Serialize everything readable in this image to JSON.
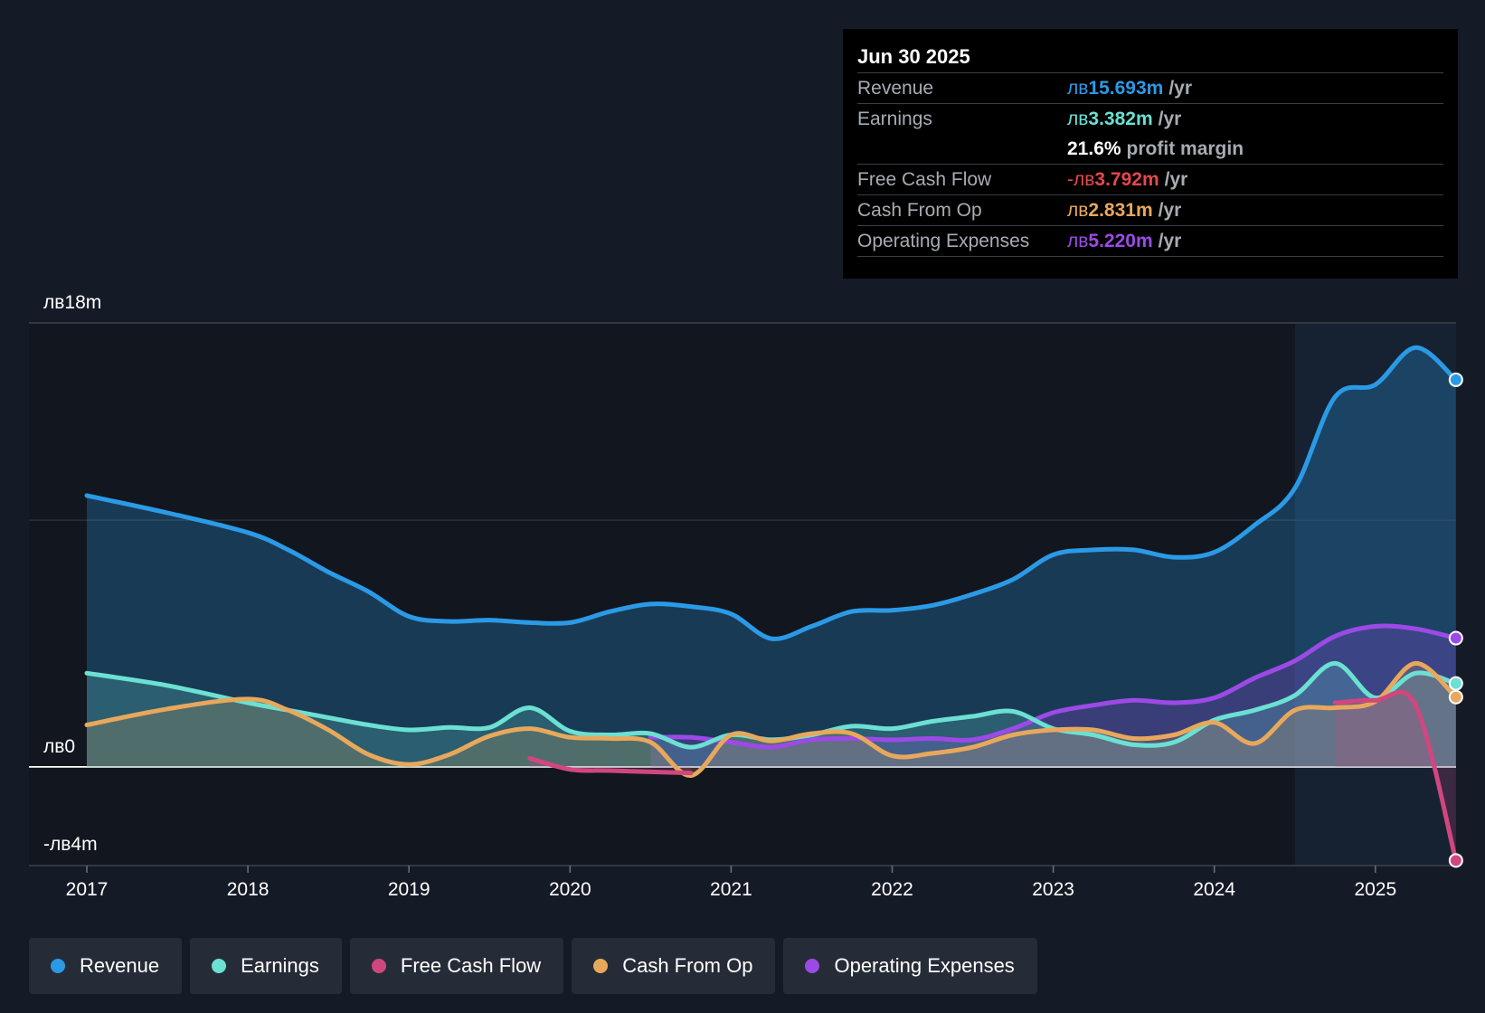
{
  "chart_data": {
    "type": "area",
    "y_axis": {
      "top_label": "лв18m",
      "zero_label": "лв0",
      "bottom_label": "-лв4m",
      "ylim": [
        -4,
        18
      ]
    },
    "x_ticks": [
      "2017",
      "2018",
      "2019",
      "2020",
      "2021",
      "2022",
      "2023",
      "2024",
      "2025"
    ],
    "xlim": [
      2016.64,
      2025.5
    ],
    "highlight_start": 2024.5,
    "series": [
      {
        "name": "Revenue",
        "key": "revenue",
        "color": "#2b9ae6",
        "points": [
          [
            2017.0,
            11.0
          ],
          [
            2017.5,
            10.3
          ],
          [
            2018.0,
            9.5
          ],
          [
            2018.25,
            8.8
          ],
          [
            2018.5,
            7.9
          ],
          [
            2018.75,
            7.1
          ],
          [
            2019.0,
            6.1
          ],
          [
            2019.25,
            5.9
          ],
          [
            2019.5,
            5.95
          ],
          [
            2019.75,
            5.85
          ],
          [
            2020.0,
            5.85
          ],
          [
            2020.25,
            6.3
          ],
          [
            2020.5,
            6.6
          ],
          [
            2020.75,
            6.5
          ],
          [
            2021.0,
            6.2
          ],
          [
            2021.25,
            5.2
          ],
          [
            2021.5,
            5.7
          ],
          [
            2021.75,
            6.3
          ],
          [
            2022.0,
            6.35
          ],
          [
            2022.25,
            6.55
          ],
          [
            2022.5,
            7.0
          ],
          [
            2022.75,
            7.6
          ],
          [
            2023.0,
            8.6
          ],
          [
            2023.25,
            8.8
          ],
          [
            2023.5,
            8.8
          ],
          [
            2023.75,
            8.5
          ],
          [
            2024.0,
            8.7
          ],
          [
            2024.25,
            9.8
          ],
          [
            2024.5,
            11.3
          ],
          [
            2024.75,
            15.0
          ],
          [
            2025.0,
            15.5
          ],
          [
            2025.25,
            17.0
          ],
          [
            2025.5,
            15.693
          ]
        ]
      },
      {
        "name": "Earnings",
        "key": "earnings",
        "color": "#6be0d3",
        "points": [
          [
            2017.0,
            3.8
          ],
          [
            2017.5,
            3.3
          ],
          [
            2018.0,
            2.6
          ],
          [
            2018.25,
            2.3
          ],
          [
            2018.5,
            2.0
          ],
          [
            2018.75,
            1.7
          ],
          [
            2019.0,
            1.5
          ],
          [
            2019.25,
            1.6
          ],
          [
            2019.5,
            1.6
          ],
          [
            2019.75,
            2.4
          ],
          [
            2020.0,
            1.45
          ],
          [
            2020.25,
            1.3
          ],
          [
            2020.5,
            1.35
          ],
          [
            2020.75,
            0.8
          ],
          [
            2021.0,
            1.3
          ],
          [
            2021.25,
            1.1
          ],
          [
            2021.5,
            1.3
          ],
          [
            2021.75,
            1.65
          ],
          [
            2022.0,
            1.55
          ],
          [
            2022.25,
            1.85
          ],
          [
            2022.5,
            2.05
          ],
          [
            2022.75,
            2.25
          ],
          [
            2023.0,
            1.55
          ],
          [
            2023.25,
            1.3
          ],
          [
            2023.5,
            0.9
          ],
          [
            2023.75,
            1.0
          ],
          [
            2024.0,
            1.9
          ],
          [
            2024.25,
            2.3
          ],
          [
            2024.5,
            2.9
          ],
          [
            2024.75,
            4.2
          ],
          [
            2025.0,
            2.8
          ],
          [
            2025.25,
            3.8
          ],
          [
            2025.5,
            3.382
          ]
        ]
      },
      {
        "name": "Free Cash Flow",
        "key": "fcf",
        "color": "#d0477f",
        "points": [
          [
            2019.75,
            0.35
          ],
          [
            2020.0,
            -0.1
          ],
          [
            2020.25,
            -0.15
          ],
          [
            2020.5,
            -0.2
          ],
          [
            2020.75,
            -0.25
          ]
        ],
        "points_late": [
          [
            2024.75,
            2.6
          ],
          [
            2025.0,
            2.7
          ],
          [
            2025.25,
            2.5
          ],
          [
            2025.5,
            -3.792
          ]
        ]
      },
      {
        "name": "Cash From Op",
        "key": "cfo",
        "color": "#e8a85c",
        "points": [
          [
            2017.0,
            1.7
          ],
          [
            2017.5,
            2.35
          ],
          [
            2018.0,
            2.75
          ],
          [
            2018.25,
            2.3
          ],
          [
            2018.5,
            1.5
          ],
          [
            2018.75,
            0.5
          ],
          [
            2019.0,
            0.1
          ],
          [
            2019.25,
            0.5
          ],
          [
            2019.5,
            1.25
          ],
          [
            2019.75,
            1.55
          ],
          [
            2020.0,
            1.2
          ],
          [
            2020.25,
            1.15
          ],
          [
            2020.5,
            1.0
          ],
          [
            2020.75,
            -0.35
          ],
          [
            2021.0,
            1.3
          ],
          [
            2021.25,
            1.05
          ],
          [
            2021.5,
            1.35
          ],
          [
            2021.75,
            1.35
          ],
          [
            2022.0,
            0.45
          ],
          [
            2022.25,
            0.55
          ],
          [
            2022.5,
            0.8
          ],
          [
            2022.75,
            1.3
          ],
          [
            2023.0,
            1.5
          ],
          [
            2023.25,
            1.5
          ],
          [
            2023.5,
            1.15
          ],
          [
            2023.75,
            1.3
          ],
          [
            2024.0,
            1.8
          ],
          [
            2024.25,
            0.95
          ],
          [
            2024.5,
            2.3
          ],
          [
            2024.75,
            2.4
          ],
          [
            2025.0,
            2.65
          ],
          [
            2025.25,
            4.2
          ],
          [
            2025.5,
            2.831
          ]
        ]
      },
      {
        "name": "Operating Expenses",
        "key": "opex",
        "color": "#9c4ae6",
        "points": [
          [
            2020.5,
            1.2
          ],
          [
            2020.75,
            1.2
          ],
          [
            2021.0,
            1.0
          ],
          [
            2021.25,
            0.8
          ],
          [
            2021.5,
            1.1
          ],
          [
            2021.75,
            1.15
          ],
          [
            2022.0,
            1.1
          ],
          [
            2022.25,
            1.15
          ],
          [
            2022.5,
            1.1
          ],
          [
            2022.75,
            1.55
          ],
          [
            2023.0,
            2.2
          ],
          [
            2023.25,
            2.5
          ],
          [
            2023.5,
            2.7
          ],
          [
            2023.75,
            2.6
          ],
          [
            2024.0,
            2.8
          ],
          [
            2024.25,
            3.6
          ],
          [
            2024.5,
            4.3
          ],
          [
            2024.75,
            5.3
          ],
          [
            2025.0,
            5.7
          ],
          [
            2025.25,
            5.6
          ],
          [
            2025.5,
            5.22
          ]
        ]
      }
    ]
  },
  "tooltip": {
    "date": "Jun 30 2025",
    "rows": {
      "revenue": {
        "label": "Revenue",
        "currency": "лв",
        "value": "15.693m",
        "unit": "/yr",
        "color": "#2b9ae6"
      },
      "earnings": {
        "label": "Earnings",
        "currency": "лв",
        "value": "3.382m",
        "unit": "/yr",
        "color": "#6be0d3"
      },
      "margin": {
        "value": "21.6%",
        "unit": "profit margin"
      },
      "fcf": {
        "label": "Free Cash Flow",
        "currency": "-лв",
        "value": "3.792m",
        "unit": "/yr",
        "color": "#e5484d"
      },
      "cfo": {
        "label": "Cash From Op",
        "currency": "лв",
        "value": "2.831m",
        "unit": "/yr",
        "color": "#e8a85c"
      },
      "opex": {
        "label": "Operating Expenses",
        "currency": "лв",
        "value": "5.220m",
        "unit": "/yr",
        "color": "#9c4ae6"
      }
    }
  },
  "legend": [
    {
      "label": "Revenue",
      "color": "#2b9ae6"
    },
    {
      "label": "Earnings",
      "color": "#6be0d3"
    },
    {
      "label": "Free Cash Flow",
      "color": "#d0477f"
    },
    {
      "label": "Cash From Op",
      "color": "#e8a85c"
    },
    {
      "label": "Operating Expenses",
      "color": "#9c4ae6"
    }
  ]
}
